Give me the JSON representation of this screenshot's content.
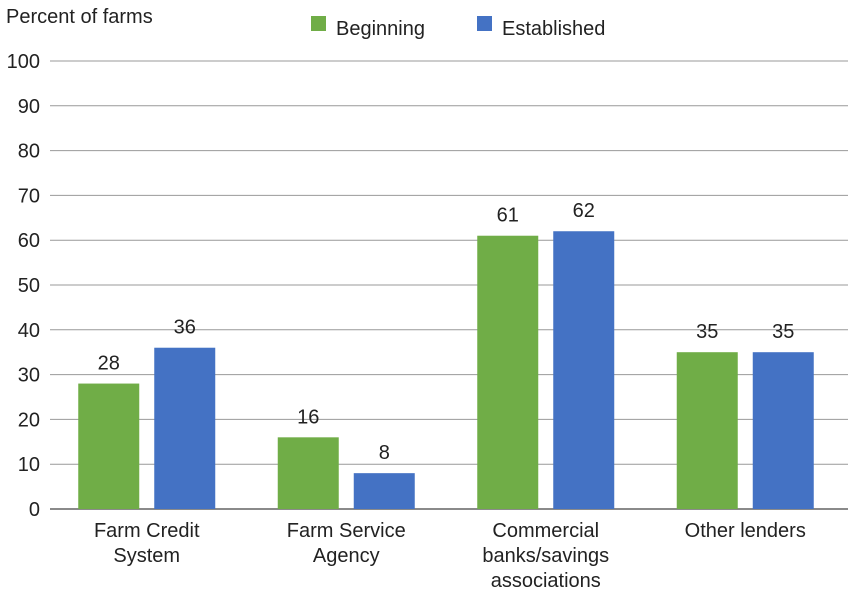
{
  "chart_data": {
    "type": "bar",
    "ylabel": "Percent of farms",
    "xlabel": "",
    "ylim": [
      0,
      100
    ],
    "yticks": [
      0,
      10,
      20,
      30,
      40,
      50,
      60,
      70,
      80,
      90,
      100
    ],
    "grid": true,
    "legend_position": "top-center",
    "categories": [
      [
        "Farm Credit",
        "System"
      ],
      [
        "Farm Service",
        "Agency"
      ],
      [
        "Commercial",
        "banks/savings",
        "associations"
      ],
      [
        "Other lenders"
      ]
    ],
    "series": [
      {
        "name": "Beginning",
        "color": "#70ad47",
        "values": [
          28,
          16,
          61,
          35
        ]
      },
      {
        "name": "Established",
        "color": "#4472c4",
        "values": [
          36,
          8,
          62,
          35
        ]
      }
    ]
  }
}
